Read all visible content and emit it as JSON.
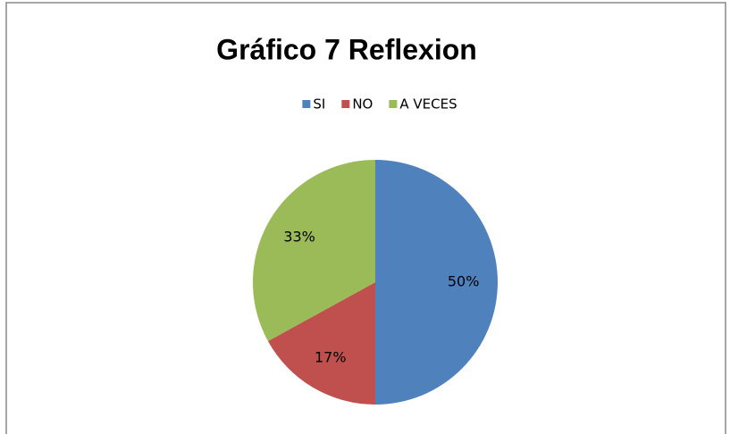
{
  "chart_data": {
    "type": "pie",
    "title": "Gráfico 7 Reflexion",
    "categories": [
      "SI",
      "NO",
      "A VECES"
    ],
    "values": [
      50,
      17,
      33
    ],
    "value_labels": [
      "50%",
      "17%",
      "33%"
    ],
    "colors": [
      "#4f81bd",
      "#c0504d",
      "#9bbb59"
    ],
    "legend": "top"
  }
}
